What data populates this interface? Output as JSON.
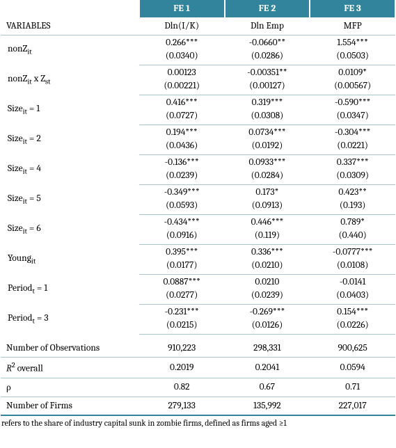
{
  "header": {
    "blank": "",
    "fe1": "FE 1",
    "fe2": "FE 2",
    "fe3": "FE 3"
  },
  "vars_row": {
    "label": "VARIABLES",
    "c1": "Dln(I/K)",
    "c2": "Dln Emp",
    "c3": "MFP"
  },
  "rows": [
    {
      "label_html": "nonZ<sub class='sub'>it</sub>",
      "coef": [
        "0.266***",
        "-0.0660**",
        "1.554***"
      ],
      "se": [
        "(0.0340)",
        "(0.0286)",
        "(0.0503)"
      ]
    },
    {
      "label_html": "nonZ<sub class='sub'>it</sub> x Z<sub class='sub'>st</sub>",
      "coef": [
        "0.00123",
        "-0.00351**",
        "0.0109*"
      ],
      "se": [
        "(0.00221)",
        "(0.00127)",
        "(0.00567)"
      ]
    },
    {
      "label_html": "Size<sub class='sub'>it</sub> =  1",
      "coef": [
        "0.416***",
        "0.319***",
        "-0.590***"
      ],
      "se": [
        "(0.0727)",
        "(0.0308)",
        "(0.0347)"
      ]
    },
    {
      "label_html": "Size<sub class='sub'>it</sub> =  2",
      "coef": [
        "0.194***",
        "0.0734***",
        "-0.304***"
      ],
      "se": [
        "(0.0436)",
        "(0.0192)",
        "(0.0221)"
      ]
    },
    {
      "label_html": "Size<sub class='sub'>it</sub> =  4",
      "coef": [
        "-0.136***",
        "0.0933***",
        "0.337***"
      ],
      "se": [
        "(0.0239)",
        "(0.0284)",
        "(0.0309)"
      ]
    },
    {
      "label_html": "Size<sub class='sub'>it</sub> =  5",
      "coef": [
        "-0.349***",
        "0.173*",
        "0.423**"
      ],
      "se": [
        "(0.0593)",
        "(0.0913)",
        "(0.193)"
      ]
    },
    {
      "label_html": "Size<sub class='sub'>it</sub> =  6",
      "coef": [
        "-0.434***",
        "0.446***",
        "0.789*"
      ],
      "se": [
        "(0.0916)",
        "(0.119)",
        "(0.440)"
      ]
    },
    {
      "label_html": "Young<sub class='sub'>it</sub>",
      "coef": [
        "0.395***",
        "0.336***",
        "-0.0777***"
      ],
      "se": [
        "(0.0177)",
        "(0.0210)",
        "(0.0108)"
      ]
    },
    {
      "label_html": "Period<sub class='sub'>t</sub> = 1",
      "coef": [
        "0.0887***",
        "0.0210",
        "-0.0141"
      ],
      "se": [
        "(0.0277)",
        "(0.0239)",
        "(0.0403)"
      ]
    },
    {
      "label_html": "Period<sub class='sub'>t</sub> = 3",
      "coef": [
        "-0.231***",
        "-0.269***",
        "0.154***"
      ],
      "se": [
        "(0.0215)",
        "(0.0126)",
        "(0.0226)"
      ]
    }
  ],
  "stats": [
    {
      "label_html": "Number of Observations",
      "vals": [
        "910,223",
        "298,331",
        "900,625"
      ]
    },
    {
      "label_html": "<span class='ital'>R</span><sup class='sup'>2</sup> overall",
      "vals": [
        "0.2019",
        "0.2041",
        "0.0594"
      ]
    },
    {
      "label_html": "ρ",
      "vals": [
        "0.82",
        "0.67",
        "0.71"
      ]
    },
    {
      "label_html": "Number of Firms",
      "vals": [
        "279,133",
        "135,992",
        "227,017"
      ]
    }
  ],
  "footnote": "refers to the share of industry capital sunk in zombie firms, defined as firms aged ≥1"
}
